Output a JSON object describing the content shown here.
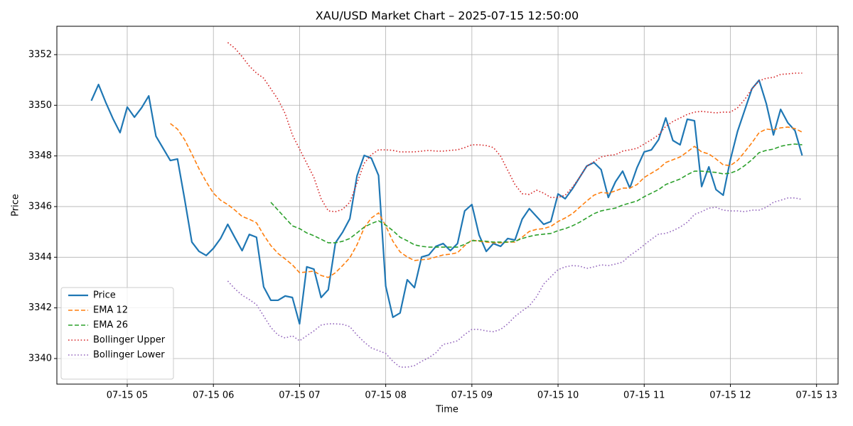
{
  "chart_data": {
    "type": "line",
    "title": "XAU/USD Market Chart – 2025-07-15 12:50:00",
    "x_label": "Time",
    "y_label": "Price",
    "grid": true,
    "legend": "lower left",
    "xlim": [
      "07-15 04:11",
      "07-15 13:15"
    ],
    "xticks": [
      "07-15 05",
      "07-15 06",
      "07-15 07",
      "07-15 08",
      "07-15 09",
      "07-15 10",
      "07-15 11",
      "07-15 12",
      "07-15 13"
    ],
    "ylim": [
      3338.99,
      3353.12
    ],
    "yticks": [
      3340,
      3342,
      3344,
      3346,
      3348,
      3350,
      3352
    ],
    "x": [
      "07-15 04:35",
      "07-15 04:40",
      "07-15 04:45",
      "07-15 04:50",
      "07-15 04:55",
      "07-15 05:00",
      "07-15 05:05",
      "07-15 05:10",
      "07-15 05:15",
      "07-15 05:20",
      "07-15 05:25",
      "07-15 05:30",
      "07-15 05:35",
      "07-15 05:40",
      "07-15 05:45",
      "07-15 05:50",
      "07-15 05:55",
      "07-15 06:00",
      "07-15 06:05",
      "07-15 06:10",
      "07-15 06:15",
      "07-15 06:20",
      "07-15 06:25",
      "07-15 06:30",
      "07-15 06:35",
      "07-15 06:40",
      "07-15 06:45",
      "07-15 06:50",
      "07-15 06:55",
      "07-15 07:00",
      "07-15 07:05",
      "07-15 07:10",
      "07-15 07:15",
      "07-15 07:20",
      "07-15 07:25",
      "07-15 07:30",
      "07-15 07:35",
      "07-15 07:40",
      "07-15 07:45",
      "07-15 07:50",
      "07-15 07:55",
      "07-15 08:00",
      "07-15 08:05",
      "07-15 08:10",
      "07-15 08:15",
      "07-15 08:20",
      "07-15 08:25",
      "07-15 08:30",
      "07-15 08:35",
      "07-15 08:40",
      "07-15 08:45",
      "07-15 08:50",
      "07-15 08:55",
      "07-15 09:00",
      "07-15 09:05",
      "07-15 09:10",
      "07-15 09:15",
      "07-15 09:20",
      "07-15 09:25",
      "07-15 09:30",
      "07-15 09:35",
      "07-15 09:40",
      "07-15 09:45",
      "07-15 09:50",
      "07-15 09:55",
      "07-15 10:00",
      "07-15 10:05",
      "07-15 10:10",
      "07-15 10:15",
      "07-15 10:20",
      "07-15 10:25",
      "07-15 10:30",
      "07-15 10:35",
      "07-15 10:40",
      "07-15 10:45",
      "07-15 10:50",
      "07-15 10:55",
      "07-15 11:00",
      "07-15 11:05",
      "07-15 11:10",
      "07-15 11:15",
      "07-15 11:20",
      "07-15 11:25",
      "07-15 11:30",
      "07-15 11:35",
      "07-15 11:40",
      "07-15 11:45",
      "07-15 11:50",
      "07-15 11:55",
      "07-15 12:00",
      "07-15 12:05",
      "07-15 12:10",
      "07-15 12:15",
      "07-15 12:20",
      "07-15 12:25",
      "07-15 12:30",
      "07-15 12:35",
      "07-15 12:40",
      "07-15 12:45",
      "07-15 12:50"
    ],
    "series": [
      {
        "name": "Price",
        "color": "#1f77b4",
        "linestyle": "solid",
        "linewidth": 2.2,
        "values": [
          3350.18,
          3350.82,
          3350.12,
          3349.48,
          3348.92,
          3349.93,
          3349.53,
          3349.9,
          3350.37,
          3348.78,
          3348.3,
          3347.82,
          3347.88,
          3346.28,
          3344.6,
          3344.23,
          3344.07,
          3344.35,
          3344.74,
          3345.3,
          3344.77,
          3344.26,
          3344.9,
          3344.79,
          3342.83,
          3342.3,
          3342.3,
          3342.47,
          3342.41,
          3341.37,
          3343.62,
          3343.53,
          3342.41,
          3342.72,
          3344.57,
          3344.99,
          3345.52,
          3347.21,
          3348.02,
          3347.91,
          3347.23,
          3342.86,
          3341.63,
          3341.8,
          3343.11,
          3342.8,
          3344.01,
          3344.09,
          3344.43,
          3344.54,
          3344.26,
          3344.54,
          3345.83,
          3346.08,
          3344.88,
          3344.23,
          3344.54,
          3344.43,
          3344.74,
          3344.68,
          3345.5,
          3345.92,
          3345.61,
          3345.3,
          3345.41,
          3346.5,
          3346.31,
          3346.7,
          3347.15,
          3347.6,
          3347.74,
          3347.46,
          3346.36,
          3346.98,
          3347.4,
          3346.73,
          3347.54,
          3348.16,
          3348.24,
          3348.64,
          3349.5,
          3348.61,
          3348.44,
          3349.45,
          3349.39,
          3346.79,
          3347.57,
          3346.67,
          3346.45,
          3347.85,
          3348.97,
          3349.81,
          3350.65,
          3350.99,
          3350.07,
          3348.83,
          3349.84,
          3349.31,
          3349.0,
          3348.02
        ]
      },
      {
        "name": "EMA 12",
        "color": "#ff7f0e",
        "linestyle": "dashed",
        "linewidth": 1.6,
        "values": [
          null,
          null,
          null,
          null,
          null,
          null,
          null,
          null,
          null,
          null,
          null,
          3349.28,
          3349.06,
          3348.64,
          3348.08,
          3347.49,
          3346.98,
          3346.53,
          3346.25,
          3346.08,
          3345.86,
          3345.61,
          3345.5,
          3345.36,
          3344.88,
          3344.46,
          3344.15,
          3343.93,
          3343.7,
          3343.39,
          3343.42,
          3343.45,
          3343.28,
          3343.2,
          3343.39,
          3343.67,
          3343.98,
          3344.49,
          3345.16,
          3345.55,
          3345.75,
          3345.24,
          3344.63,
          3344.21,
          3344.01,
          3343.87,
          3343.9,
          3343.93,
          3344.01,
          3344.09,
          3344.12,
          3344.18,
          3344.46,
          3344.68,
          3344.63,
          3344.6,
          3344.57,
          3344.57,
          3344.6,
          3344.6,
          3344.79,
          3345.02,
          3345.1,
          3345.13,
          3345.22,
          3345.41,
          3345.55,
          3345.72,
          3345.97,
          3346.22,
          3346.45,
          3346.56,
          3346.53,
          3346.62,
          3346.73,
          3346.73,
          3346.87,
          3347.15,
          3347.32,
          3347.49,
          3347.74,
          3347.85,
          3347.96,
          3348.16,
          3348.38,
          3348.16,
          3348.08,
          3347.88,
          3347.65,
          3347.62,
          3347.82,
          3348.16,
          3348.52,
          3348.92,
          3349.06,
          3349.03,
          3349.11,
          3349.14,
          3349.08,
          3348.94
        ]
      },
      {
        "name": "EMA 26",
        "color": "#2ca02c",
        "linestyle": "dashed",
        "linewidth": 1.6,
        "values": [
          null,
          null,
          null,
          null,
          null,
          null,
          null,
          null,
          null,
          null,
          null,
          null,
          null,
          null,
          null,
          null,
          null,
          null,
          null,
          null,
          null,
          null,
          null,
          null,
          null,
          3346.17,
          3345.86,
          3345.55,
          3345.24,
          3345.13,
          3344.96,
          3344.85,
          3344.71,
          3344.57,
          3344.57,
          3344.63,
          3344.74,
          3344.96,
          3345.19,
          3345.33,
          3345.44,
          3345.27,
          3345.05,
          3344.79,
          3344.65,
          3344.49,
          3344.43,
          3344.4,
          3344.4,
          3344.4,
          3344.4,
          3344.4,
          3344.51,
          3344.65,
          3344.65,
          3344.63,
          3344.6,
          3344.6,
          3344.6,
          3344.63,
          3344.74,
          3344.82,
          3344.88,
          3344.91,
          3344.94,
          3345.05,
          3345.13,
          3345.24,
          3345.38,
          3345.55,
          3345.72,
          3345.83,
          3345.89,
          3345.94,
          3346.06,
          3346.14,
          3346.22,
          3346.39,
          3346.53,
          3346.67,
          3346.87,
          3346.98,
          3347.09,
          3347.26,
          3347.4,
          3347.4,
          3347.37,
          3347.35,
          3347.29,
          3347.32,
          3347.43,
          3347.62,
          3347.85,
          3348.13,
          3348.22,
          3348.27,
          3348.38,
          3348.44,
          3348.47,
          3348.44
        ]
      },
      {
        "name": "Bollinger Upper",
        "color": "#d62728",
        "linestyle": "dotted",
        "linewidth": 1.6,
        "values": [
          null,
          null,
          null,
          null,
          null,
          null,
          null,
          null,
          null,
          null,
          null,
          null,
          null,
          null,
          null,
          null,
          null,
          null,
          null,
          3352.48,
          3352.25,
          3351.92,
          3351.55,
          3351.27,
          3351.07,
          3350.65,
          3350.23,
          3349.67,
          3348.83,
          3348.27,
          3347.71,
          3347.15,
          3346.31,
          3345.83,
          3345.8,
          3345.89,
          3346.17,
          3346.93,
          3347.71,
          3348.05,
          3348.24,
          3348.24,
          3348.22,
          3348.16,
          3348.16,
          3348.16,
          3348.19,
          3348.22,
          3348.19,
          3348.19,
          3348.22,
          3348.24,
          3348.33,
          3348.44,
          3348.44,
          3348.41,
          3348.33,
          3347.99,
          3347.43,
          3346.87,
          3346.51,
          3346.48,
          3346.65,
          3346.53,
          3346.36,
          3346.36,
          3346.45,
          3346.76,
          3347.15,
          3347.6,
          3347.77,
          3347.96,
          3348.02,
          3348.05,
          3348.19,
          3348.24,
          3348.3,
          3348.47,
          3348.64,
          3348.83,
          3349.17,
          3349.36,
          3349.5,
          3349.64,
          3349.73,
          3349.76,
          3349.73,
          3349.7,
          3349.73,
          3349.73,
          3349.9,
          3350.23,
          3350.65,
          3350.96,
          3351.07,
          3351.1,
          3351.22,
          3351.24,
          3351.27,
          3351.27
        ]
      },
      {
        "name": "Bollinger Lower",
        "color": "#9467bd",
        "linestyle": "dotted",
        "linewidth": 1.6,
        "values": [
          null,
          null,
          null,
          null,
          null,
          null,
          null,
          null,
          null,
          null,
          null,
          null,
          null,
          null,
          null,
          null,
          null,
          null,
          null,
          3343.06,
          3342.75,
          3342.5,
          3342.33,
          3342.13,
          3341.68,
          3341.23,
          3340.93,
          3340.81,
          3340.9,
          3340.7,
          3340.9,
          3341.09,
          3341.32,
          3341.37,
          3341.37,
          3341.35,
          3341.26,
          3340.93,
          3340.65,
          3340.42,
          3340.31,
          3340.2,
          3339.89,
          3339.66,
          3339.66,
          3339.72,
          3339.89,
          3340.03,
          3340.23,
          3340.56,
          3340.62,
          3340.7,
          3340.95,
          3341.15,
          3341.15,
          3341.09,
          3341.06,
          3341.15,
          3341.37,
          3341.66,
          3341.88,
          3342.08,
          3342.44,
          3342.94,
          3343.23,
          3343.51,
          3343.62,
          3343.67,
          3343.65,
          3343.56,
          3343.62,
          3343.7,
          3343.67,
          3343.73,
          3343.81,
          3344.07,
          3344.26,
          3344.49,
          3344.71,
          3344.91,
          3344.94,
          3345.05,
          3345.19,
          3345.38,
          3345.69,
          3345.8,
          3345.94,
          3345.97,
          3345.86,
          3345.83,
          3345.83,
          3345.8,
          3345.86,
          3345.86,
          3345.97,
          3346.17,
          3346.25,
          3346.34,
          3346.34,
          3346.28
        ]
      }
    ]
  }
}
